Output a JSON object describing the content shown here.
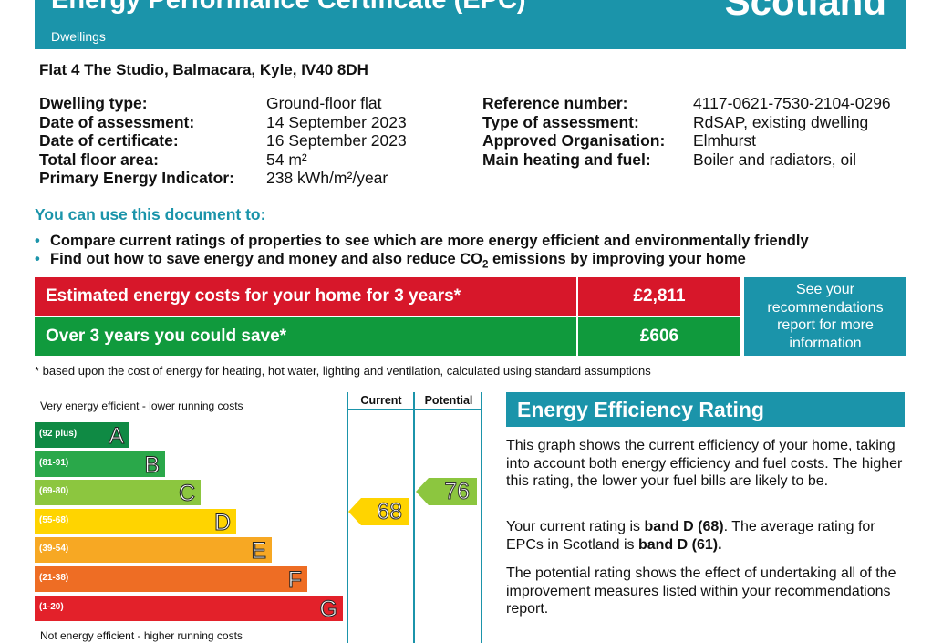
{
  "header": {
    "title": "Energy Performance Certificate (EPC)",
    "subtitle": "Dwellings",
    "country": "Scotland"
  },
  "address": "Flat 4 The Studio, Balmacara, Kyle, IV40 8DH",
  "details_left": [
    {
      "label": "Dwelling type:",
      "value": "Ground-floor flat"
    },
    {
      "label": "Date of assessment:",
      "value": "14 September 2023"
    },
    {
      "label": "Date of certificate:",
      "value": "16 September 2023"
    },
    {
      "label": "Total floor area:",
      "value": "54 m²"
    },
    {
      "label": "Primary Energy Indicator:",
      "value": "238 kWh/m²/year"
    }
  ],
  "details_right": [
    {
      "label": "Reference number:",
      "value": "4117-0621-7530-2104-0296"
    },
    {
      "label": "Type of assessment:",
      "value": "RdSAP, existing dwelling"
    },
    {
      "label": "Approved Organisation:",
      "value": "Elmhurst"
    },
    {
      "label": "Main heating and fuel:",
      "value": "Boiler and radiators, oil"
    }
  ],
  "use_heading": "You can use this document to:",
  "bullets": {
    "b1": "Compare current ratings of properties to see which are more energy efficient and environmentally friendly",
    "b2_pre": "Find out how to save energy and money and also reduce CO",
    "b2_sub": "2",
    "b2_post": " emissions by improving your home"
  },
  "costs": {
    "estimated_label": "Estimated energy costs for your home for 3 years*",
    "estimated_value": "£2,811",
    "save_label": "Over 3 years you could save*",
    "save_value": "£606",
    "see_text": "See your recommendations report for more information",
    "footnote": "* based upon the cost of energy for heating, hot water, lighting and ventilation, calculated using standard assumptions"
  },
  "rating_chart": {
    "top_text": "Very energy efficient - lower running costs",
    "bottom_text": "Not energy efficient - higher running costs",
    "col_current": "Current",
    "col_potential": "Potential",
    "bands": [
      {
        "range": "(92 plus)",
        "letter": "A",
        "color": "#0f8a44"
      },
      {
        "range": "(81-91)",
        "letter": "B",
        "color": "#2aa84a"
      },
      {
        "range": "(69-80)",
        "letter": "C",
        "color": "#8cc63f"
      },
      {
        "range": "(55-68)",
        "letter": "D",
        "color": "#ffd400"
      },
      {
        "range": "(39-54)",
        "letter": "E",
        "color": "#f7a823"
      },
      {
        "range": "(21-38)",
        "letter": "F",
        "color": "#ee6d24"
      },
      {
        "range": "(1-20)",
        "letter": "G",
        "color": "#e3212a"
      }
    ],
    "current": {
      "value": "68",
      "color": "#ffd400"
    },
    "potential": {
      "value": "76",
      "color": "#8cc63f"
    }
  },
  "eer": {
    "heading": "Energy Efficiency Rating",
    "para1": "This graph shows the current efficiency of your home, taking into account both energy efficiency and fuel costs. The higher this rating, the lower your fuel bills are likely to be.",
    "para2_a": "Your current rating is ",
    "para2_b": "band D (68)",
    "para2_c": ". The average rating for EPCs in Scotland is ",
    "para2_d": "band D (61).",
    "para3": "The potential rating shows the effect of undertaking all of the improvement measures listed within your recommendations report."
  }
}
